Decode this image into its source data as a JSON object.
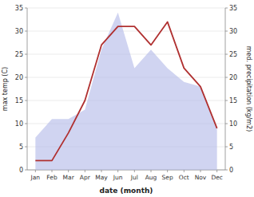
{
  "chart_data": {
    "type": "line",
    "categories": [
      "Jan",
      "Feb",
      "Mar",
      "Apr",
      "May",
      "Jun",
      "Jul",
      "Aug",
      "Sep",
      "Oct",
      "Nov",
      "Dec"
    ],
    "series": [
      {
        "type": "area",
        "axis": "y2",
        "color": "#b0b8e8",
        "values": [
          7,
          11,
          11,
          13,
          26,
          34,
          22,
          26,
          22,
          19,
          18,
          9
        ]
      },
      {
        "type": "line",
        "color": "#b03030",
        "values": [
          2,
          2,
          8,
          15,
          27,
          31,
          31,
          27,
          32,
          22,
          18,
          9
        ]
      }
    ],
    "xlabel": "date (month)",
    "ylabel": "max temp (C)",
    "y2label": "med. precipitation (kg/m2)",
    "ylim": [
      0,
      35
    ],
    "yticks": [
      0,
      5,
      10,
      15,
      20,
      25,
      30,
      35
    ],
    "y2lim": [
      0,
      35
    ],
    "y2ticks": [
      0,
      5,
      10,
      15,
      20,
      25,
      30,
      35
    ],
    "grid": true
  }
}
